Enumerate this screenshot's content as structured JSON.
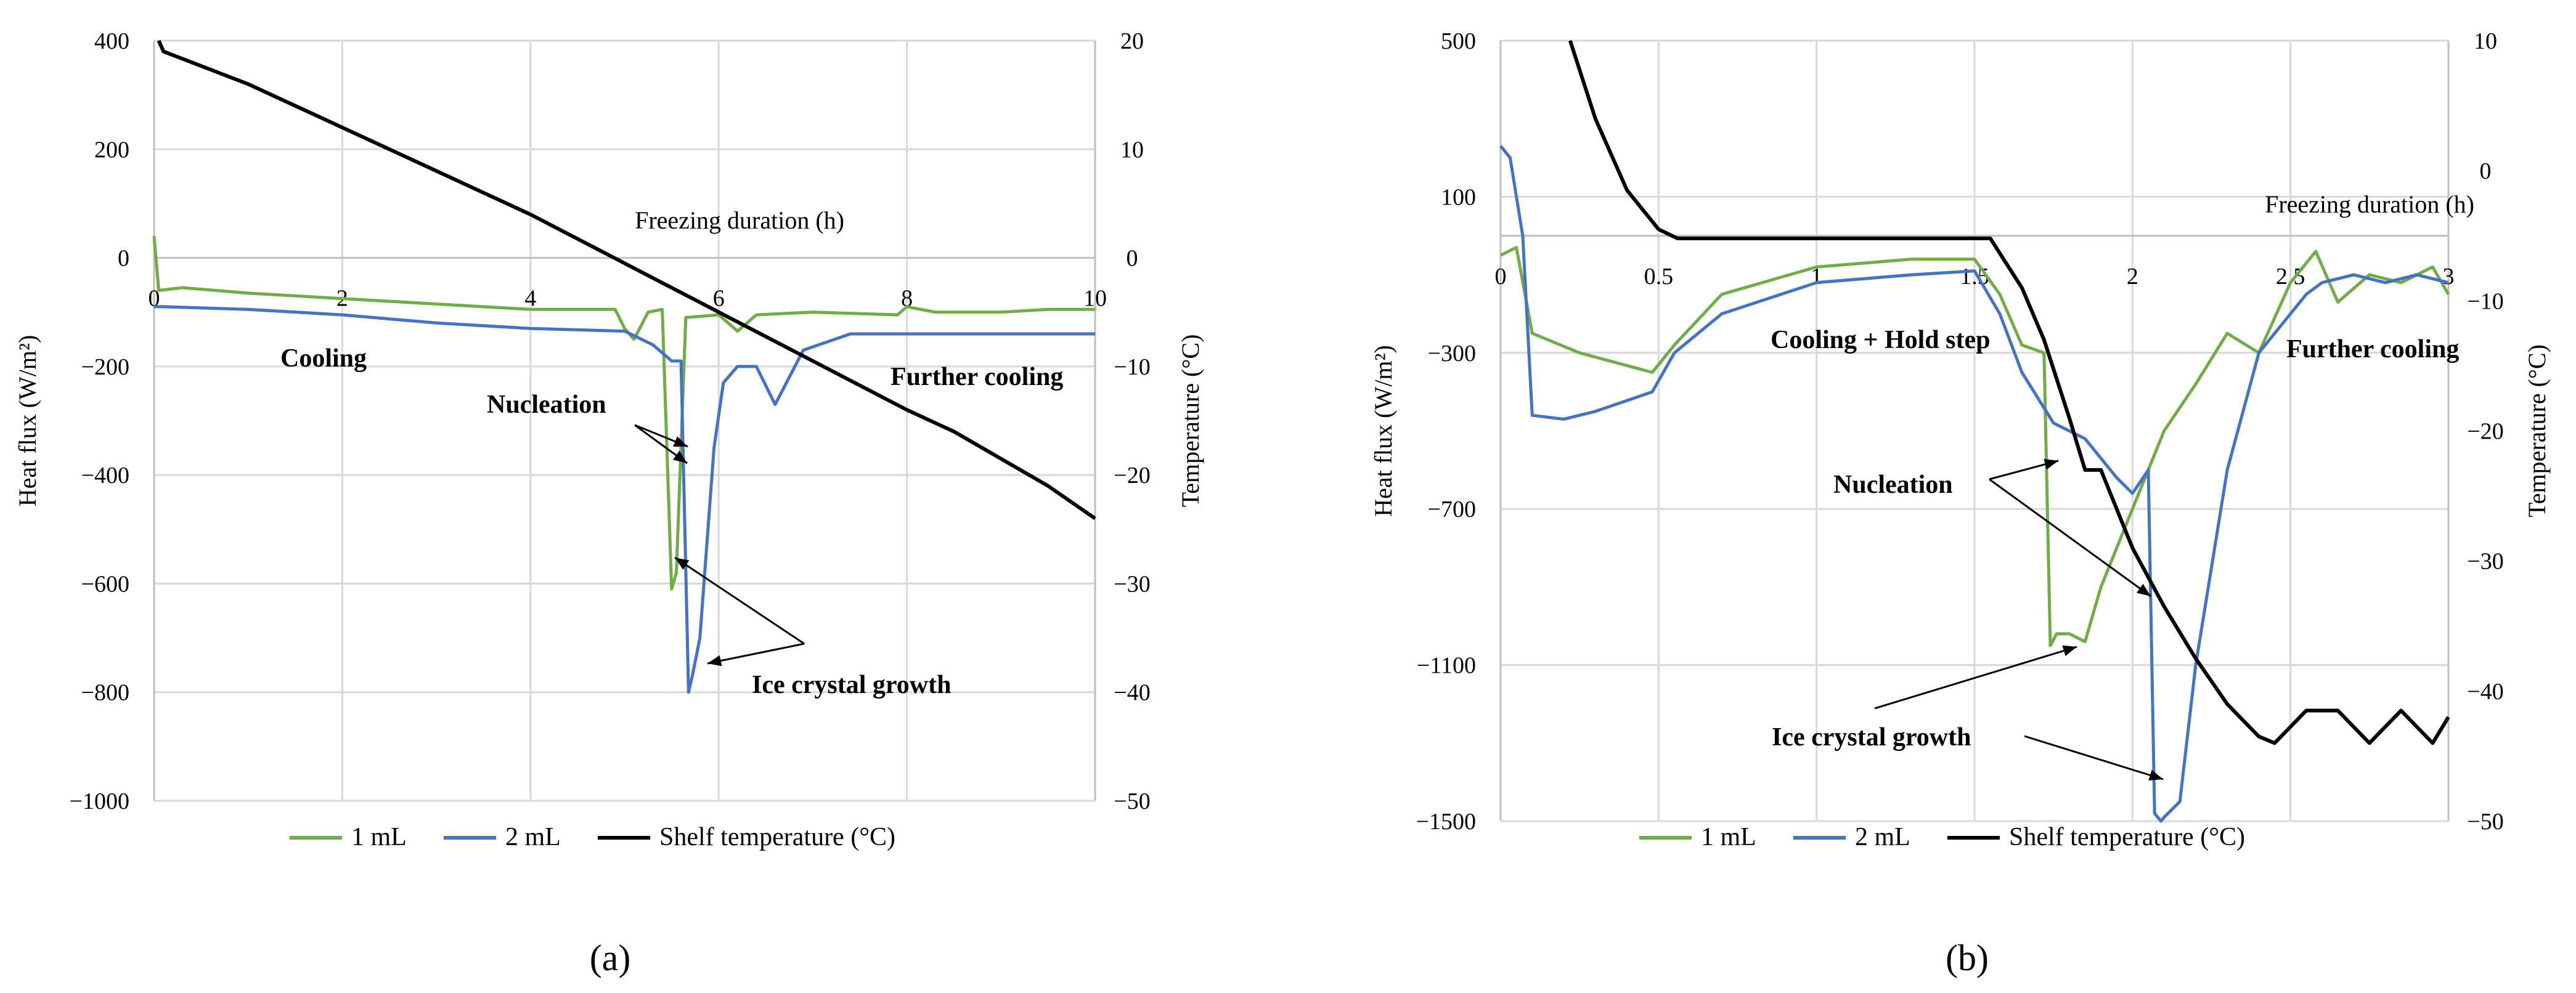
{
  "chart_data": [
    {
      "type": "line",
      "panel_label": "(a)",
      "xlabel": "Freezing duration  (h)",
      "ylabel": "Heat flux (W/m²)",
      "y2label": "Temperature (°C)",
      "xlim": [
        0,
        10
      ],
      "ylim": [
        -1000,
        400
      ],
      "y2lim": [
        -50,
        20
      ],
      "x_ticks": [
        "0",
        "2",
        "4",
        "6",
        "8",
        "10"
      ],
      "y_ticks": [
        "400",
        "200",
        "0",
        "−200",
        "−400",
        "−600",
        "−800",
        "−1000"
      ],
      "y2_ticks": [
        "20",
        "10",
        "0",
        "−10",
        "−20",
        "−30",
        "−40",
        "−50"
      ],
      "annotations": [
        "Cooling",
        "Nucleation",
        "Ice crystal growth",
        "Further cooling"
      ],
      "legend": [
        "1 mL",
        "2 mL",
        "Shelf temperature (°C)"
      ],
      "series": [
        {
          "name": "1 mL",
          "axis": "left",
          "color": "#70ad47",
          "x": [
            0,
            0.05,
            0.3,
            1,
            2,
            3,
            4,
            4.9,
            5.0,
            5.1,
            5.25,
            5.4,
            5.5,
            5.55,
            5.65,
            6.0,
            6.1,
            6.2,
            6.4,
            7,
            7.9,
            8.0,
            8.3,
            9,
            9.5,
            10
          ],
          "y": [
            40,
            -60,
            -55,
            -65,
            -75,
            -85,
            -95,
            -95,
            -130,
            -150,
            -100,
            -95,
            -610,
            -580,
            -110,
            -105,
            -120,
            -135,
            -105,
            -100,
            -105,
            -90,
            -100,
            -100,
            -95,
            -95
          ]
        },
        {
          "name": "2 mL",
          "axis": "left",
          "color": "#4472c4",
          "x": [
            0,
            0.1,
            1,
            2,
            3,
            4,
            5.0,
            5.3,
            5.5,
            5.6,
            5.68,
            5.72,
            5.8,
            5.95,
            6.05,
            6.2,
            6.4,
            6.6,
            6.9,
            7.4,
            8,
            8.5,
            9,
            9.5,
            10
          ],
          "y": [
            -90,
            -90,
            -95,
            -105,
            -120,
            -130,
            -135,
            -160,
            -190,
            -190,
            -800,
            -770,
            -700,
            -350,
            -230,
            -200,
            -200,
            -270,
            -170,
            -140,
            -140,
            -140,
            -140,
            -140,
            -140
          ]
        },
        {
          "name": "Shelf temperature (°C)",
          "axis": "right",
          "color": "#000000",
          "x": [
            0.05,
            0.1,
            1,
            2,
            3,
            4,
            5,
            6,
            7,
            8,
            8.5,
            9,
            9.5,
            10
          ],
          "y": [
            20,
            19,
            16,
            12,
            8,
            4,
            -0.5,
            -5,
            -9.5,
            -14,
            -16,
            -18.5,
            -21,
            -24
          ]
        }
      ]
    },
    {
      "type": "line",
      "panel_label": "(b)",
      "xlabel": "Freezing duration  (h)",
      "ylabel": "Heat flux (W/m²)",
      "y2label": "Temperature (°C)",
      "xlim": [
        0,
        3
      ],
      "ylim": [
        -1500,
        500
      ],
      "y2lim": [
        -50,
        10
      ],
      "x_ticks": [
        "0",
        "0.5",
        "1",
        "1.5",
        "2",
        "2.5",
        "3"
      ],
      "y_ticks": [
        "500",
        "100",
        "−300",
        "−700",
        "−1100",
        "−1500"
      ],
      "y2_ticks": [
        "10",
        "0",
        "−10",
        "−20",
        "−30",
        "−40",
        "−50"
      ],
      "annotations": [
        "Cooling + Hold step",
        "Nucleation",
        "Ice crystal growth",
        "Further cooling"
      ],
      "legend": [
        "1 mL",
        "2 mL",
        "Shelf temperature (°C)"
      ],
      "series": [
        {
          "name": "1 mL",
          "axis": "left",
          "color": "#70ad47",
          "x": [
            0,
            0.05,
            0.1,
            0.25,
            0.48,
            0.55,
            0.7,
            1,
            1.3,
            1.5,
            1.58,
            1.65,
            1.72,
            1.74,
            1.76,
            1.8,
            1.85,
            1.9,
            2,
            2.1,
            2.2,
            2.3,
            2.4,
            2.5,
            2.58,
            2.65,
            2.75,
            2.85,
            2.95,
            3
          ],
          "y": [
            -50,
            -30,
            -250,
            -300,
            -350,
            -280,
            -150,
            -80,
            -60,
            -60,
            -150,
            -280,
            -300,
            -1050,
            -1020,
            -1020,
            -1040,
            -900,
            -700,
            -500,
            -380,
            -250,
            -300,
            -120,
            -40,
            -170,
            -100,
            -120,
            -80,
            -150
          ]
        },
        {
          "name": "2 mL",
          "axis": "left",
          "color": "#4472c4",
          "x": [
            0,
            0.03,
            0.07,
            0.1,
            0.2,
            0.3,
            0.48,
            0.55,
            0.7,
            1,
            1.3,
            1.5,
            1.58,
            1.65,
            1.75,
            1.85,
            1.95,
            2.0,
            2.05,
            2.07,
            2.09,
            2.1,
            2.15,
            2.2,
            2.3,
            2.4,
            2.5,
            2.55,
            2.6,
            2.7,
            2.8,
            2.9,
            3
          ],
          "y": [
            230,
            200,
            0,
            -460,
            -470,
            -450,
            -400,
            -300,
            -200,
            -120,
            -100,
            -90,
            -200,
            -350,
            -480,
            -520,
            -620,
            -660,
            -600,
            -1480,
            -1500,
            -1490,
            -1450,
            -1100,
            -600,
            -300,
            -200,
            -150,
            -120,
            -100,
            -120,
            -100,
            -120
          ]
        },
        {
          "name": "Shelf temperature (°C)",
          "axis": "right",
          "color": "#000000",
          "x": [
            0.22,
            0.3,
            0.4,
            0.5,
            0.56,
            0.7,
            1,
            1.3,
            1.55,
            1.65,
            1.72,
            1.8,
            1.85,
            1.9,
            1.95,
            2.0,
            2.1,
            2.2,
            2.3,
            2.4,
            2.45,
            2.55,
            2.65,
            2.75,
            2.85,
            2.95,
            3
          ],
          "y": [
            10,
            4,
            -1.5,
            -4.5,
            -5.2,
            -5.2,
            -5.2,
            -5.2,
            -5.2,
            -9,
            -13,
            -19,
            -23,
            -23,
            -26,
            -29,
            -33.5,
            -37.5,
            -41,
            -43.5,
            -44,
            -41.5,
            -41.5,
            -44,
            -41.5,
            -44,
            -42
          ]
        }
      ]
    }
  ]
}
